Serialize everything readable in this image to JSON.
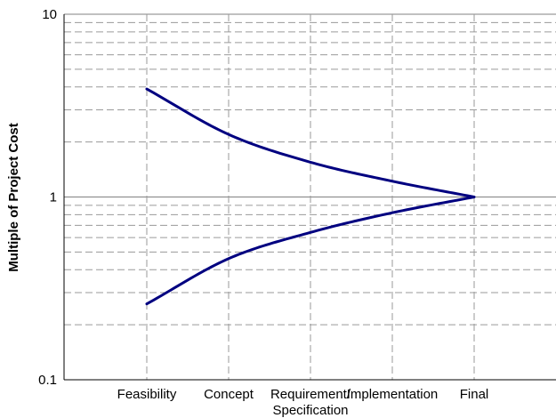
{
  "chart_data": {
    "type": "line",
    "title": "",
    "xlabel": "",
    "ylabel": "Multiple of Project Cost",
    "y_scale": "log",
    "ylim": [
      0.1,
      10
    ],
    "y_ticks": [
      "0.1",
      "1",
      "10"
    ],
    "categories": [
      [
        "Feasibility"
      ],
      [
        "Concept"
      ],
      [
        "Requirement/",
        "Specification"
      ],
      [
        "Implementation"
      ],
      [
        "Final"
      ]
    ],
    "series": [
      {
        "role": "upper-bound",
        "values": [
          3.9,
          2.2,
          1.55,
          1.22,
          1.0
        ]
      },
      {
        "role": "lower-bound",
        "values": [
          0.26,
          0.46,
          0.64,
          0.82,
          1.0
        ]
      }
    ],
    "grid": true,
    "legend": "none",
    "colors": {
      "series": "#000080",
      "grid_major": "#808080",
      "grid_minor": "#9a9a9a",
      "axis": "#000000"
    }
  }
}
